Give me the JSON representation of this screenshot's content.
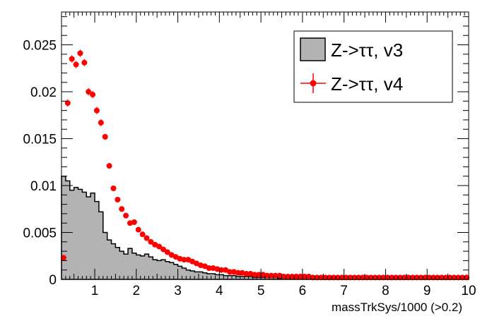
{
  "chart_data": {
    "type": "area",
    "title": "",
    "xlabel": "massTrkSys/1000 (>0.2)",
    "ylabel": "",
    "xlim": [
      0.2,
      10.0
    ],
    "ylim": [
      0,
      0.0285
    ],
    "bin_width": 0.1,
    "x_ticks": [
      1,
      2,
      3,
      4,
      5,
      6,
      7,
      8,
      9,
      10
    ],
    "x_tick_labels": [
      "1",
      "2",
      "3",
      "4",
      "5",
      "6",
      "7",
      "8",
      "9",
      "10"
    ],
    "y_ticks": [
      0,
      0.005,
      0.01,
      0.015,
      0.02,
      0.025
    ],
    "y_tick_labels": [
      "0",
      "0.005",
      "0.01",
      "0.015",
      "0.02",
      "0.025"
    ],
    "grid": false,
    "legend_position": "top-right",
    "colors": {
      "v3_fill": "#b3b3b3",
      "v3_line": "#000000",
      "v4": "#ff0000"
    },
    "series": [
      {
        "name": "Z->ττ, v3",
        "style": "filled-histogram",
        "x_start": 0.2,
        "values": [
          0.011,
          0.0105,
          0.0095,
          0.0098,
          0.0096,
          0.0093,
          0.0088,
          0.0092,
          0.0083,
          0.0072,
          0.005,
          0.0042,
          0.0038,
          0.0034,
          0.003,
          0.0027,
          0.0033,
          0.0028,
          0.0026,
          0.0025,
          0.0027,
          0.0024,
          0.0021,
          0.002,
          0.0021,
          0.0019,
          0.0018,
          0.0016,
          0.0014,
          0.0012,
          0.001,
          0.0009,
          0.0008,
          0.0008,
          0.0007,
          0.0006,
          0.0006,
          0.0005,
          0.0005,
          0.0004,
          0.0004,
          0.0004,
          0.0003,
          0.0003,
          0.0003,
          0.0003,
          0.0002,
          0.0002,
          0.0002,
          0.0002,
          0.0002,
          0.0002,
          0.0001,
          0.0001,
          0.0001,
          0.0001,
          0.0001,
          0.0001,
          0.0001,
          0.0001,
          0.0001,
          0.0001,
          0.0001,
          0.0001,
          0.0001,
          0.0001,
          0.0001,
          0.0001,
          0.0001,
          0.0001,
          0.0001,
          0.0001,
          0.0001,
          0.0001,
          0.0001,
          0.0001,
          0.0001,
          0.0001,
          0.0001,
          0.0001,
          0.0001,
          0.0001,
          0.0001,
          0.0001,
          0.0001,
          0.0001,
          0.0001,
          0.0001,
          0.0001,
          0.0001,
          0.0001,
          0.0001,
          0.0001,
          0.0001,
          0.0001,
          0.0001,
          0.0001,
          0.0001
        ]
      },
      {
        "name": "Z->ττ, v4",
        "style": "markers-with-errors",
        "x": [
          0.25,
          0.35,
          0.45,
          0.55,
          0.65,
          0.75,
          0.85,
          0.95,
          1.05,
          1.15,
          1.25,
          1.35,
          1.45,
          1.55,
          1.65,
          1.75,
          1.85,
          1.95,
          2.05,
          2.15,
          2.25,
          2.35,
          2.45,
          2.55,
          2.65,
          2.75,
          2.85,
          2.95,
          3.05,
          3.15,
          3.25,
          3.35,
          3.45,
          3.55,
          3.65,
          3.75,
          3.85,
          3.95,
          4.05,
          4.15,
          4.25,
          4.35,
          4.45,
          4.55,
          4.65,
          4.75,
          4.85,
          4.95,
          5.05,
          5.15,
          5.25,
          5.35,
          5.45,
          5.55,
          5.65,
          5.75,
          5.85,
          5.95,
          6.05,
          6.15,
          6.25,
          6.35,
          6.45,
          6.55,
          6.65,
          6.75,
          6.85,
          6.95,
          7.05,
          7.15,
          7.25,
          7.35,
          7.45,
          7.55,
          7.65,
          7.75,
          7.85,
          7.95,
          8.05,
          8.15,
          8.25,
          8.35,
          8.45,
          8.55,
          8.65,
          8.75,
          8.85,
          8.95,
          9.05,
          9.15,
          9.25,
          9.35,
          9.45,
          9.55,
          9.65,
          9.75,
          9.85,
          9.95
        ],
        "values": [
          0.0023,
          0.0188,
          0.0235,
          0.0229,
          0.0241,
          0.0231,
          0.02,
          0.0197,
          0.018,
          0.0167,
          0.0152,
          0.0121,
          0.0097,
          0.0085,
          0.0075,
          0.0068,
          0.006,
          0.0061,
          0.0053,
          0.0048,
          0.0044,
          0.004,
          0.0037,
          0.0035,
          0.0032,
          0.0029,
          0.0026,
          0.0024,
          0.0022,
          0.0021,
          0.0021,
          0.0019,
          0.0017,
          0.0015,
          0.0014,
          0.0012,
          0.0012,
          0.0011,
          0.001,
          0.001,
          0.0008,
          0.0008,
          0.0007,
          0.0007,
          0.0006,
          0.0006,
          0.0005,
          0.0005,
          0.0005,
          0.0004,
          0.0004,
          0.0004,
          0.0004,
          0.0003,
          0.0003,
          0.0003,
          0.0003,
          0.0003,
          0.0003,
          0.0003,
          0.0002,
          0.0002,
          0.0002,
          0.0002,
          0.0002,
          0.0002,
          0.0002,
          0.0002,
          0.0002,
          0.0002,
          0.0002,
          0.0002,
          0.0002,
          0.0002,
          0.0002,
          0.0002,
          0.0002,
          0.0002,
          0.0002,
          0.0002,
          0.0002,
          0.0002,
          0.0002,
          0.0002,
          0.0002,
          0.0002,
          0.0002,
          0.0002,
          0.0002,
          0.0002,
          0.0002,
          0.0002,
          0.0002,
          0.0002,
          0.0002,
          0.0002,
          0.0002,
          0.0002
        ],
        "errors": [
          0.0003,
          0.0004,
          0.0004,
          0.0004,
          0.0004,
          0.0004,
          0.0004,
          0.0004,
          0.0004,
          0.0004,
          0.0003,
          0.0003,
          0.0003,
          0.0003,
          0.0003,
          0.0003,
          0.0002,
          0.0002,
          0.0002,
          0.0002,
          0.0002,
          0.0002,
          0.0002,
          0.0002,
          0.0002,
          0.0002,
          0.0002,
          0.0002,
          0.0002,
          0.0002,
          0.0002,
          0.0002,
          0.0001,
          0.0001,
          0.0001,
          0.0001,
          0.0001,
          0.0001,
          0.0001,
          0.0001,
          0.0001,
          0.0001,
          0.0001,
          0.0001,
          0.0001,
          0.0001,
          0.0001,
          0.0001,
          0.0001,
          0.0001,
          0.0001,
          0.0001,
          0.0001,
          0.0001,
          0.0001,
          0.0001,
          0.0001,
          0.0001,
          0.0001,
          0.0001,
          0.0001,
          0.0001,
          0.0001,
          0.0001,
          0.0001,
          0.0001,
          0.0001,
          0.0001,
          0.0001,
          0.0001,
          0.0001,
          0.0001,
          0.0001,
          0.0001,
          0.0001,
          0.0001,
          0.0001,
          0.0001,
          0.0001,
          0.0001,
          0.0001,
          0.0001,
          0.0001,
          0.0001,
          0.0001,
          0.0001,
          0.0001,
          0.0001,
          0.0001,
          0.0001,
          0.0001,
          0.0001,
          0.0001,
          0.0001,
          0.0001,
          0.0001,
          0.0001,
          0.0001
        ]
      }
    ]
  }
}
